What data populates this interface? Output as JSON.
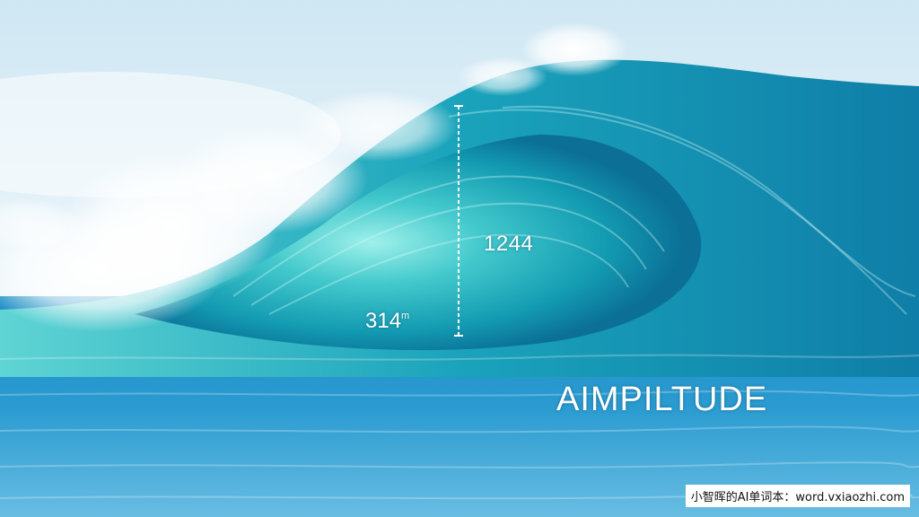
{
  "image": {
    "palette": {
      "sky_top": "#dbeef7",
      "sky_bottom": "#f2f8fb",
      "wave_deep": "#0c7fa3",
      "wave_light": "#4fd0d0",
      "sea": "#1c89c4",
      "foam": "#ffffff"
    }
  },
  "annotations": {
    "upper_value": "1244",
    "lower_value": "314",
    "lower_unit": "m",
    "headline": "AIMPILTUDE"
  },
  "watermark": {
    "text": "小智晖的AI单词本：word.vxiaozhi.com"
  }
}
